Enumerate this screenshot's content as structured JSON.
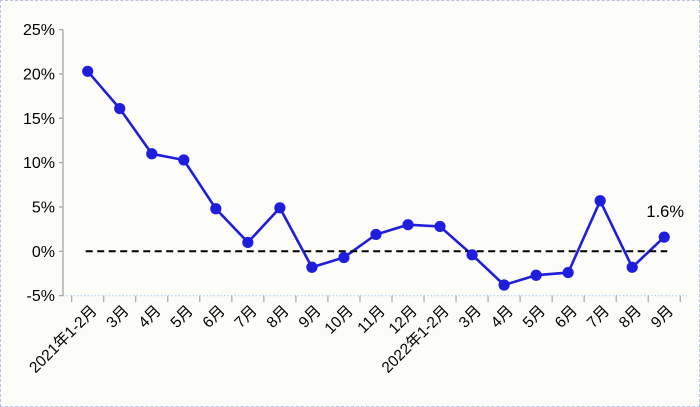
{
  "chart_data": {
    "type": "line",
    "title": "",
    "xlabel": "",
    "ylabel": "",
    "categories": [
      "2021年1-2月",
      "3月",
      "4月",
      "5月",
      "6月",
      "7月",
      "8月",
      "9月",
      "10月",
      "11月",
      "12月",
      "2022年1-2月",
      "3月",
      "4月",
      "5月",
      "6月",
      "7月",
      "8月",
      "9月"
    ],
    "values": [
      20.3,
      16.1,
      11.0,
      10.3,
      4.8,
      1.0,
      4.9,
      -1.8,
      -0.7,
      1.9,
      3.0,
      2.8,
      -0.4,
      -3.8,
      -2.7,
      -2.4,
      5.7,
      -1.8,
      1.6
    ],
    "unit": "%",
    "y_ticks": [
      "25%",
      "20%",
      "15%",
      "10%",
      "5%",
      "0%",
      "-5%"
    ],
    "y_tick_values": [
      25,
      20,
      15,
      10,
      5,
      0,
      -5
    ],
    "ylim": [
      -5,
      25
    ],
    "grid": false,
    "legend": false,
    "zero_reference_line": true,
    "annotation": {
      "text": "1.6%",
      "point_index": 18
    },
    "colors": {
      "series": "#1E1EDC",
      "zero_line": "#000000",
      "axis": "#A6A6A6",
      "baseline_dotted": "#BDD7EE",
      "text": "#000000",
      "background": "#FCFCF8",
      "frame_border": "#B9C2E6"
    }
  }
}
